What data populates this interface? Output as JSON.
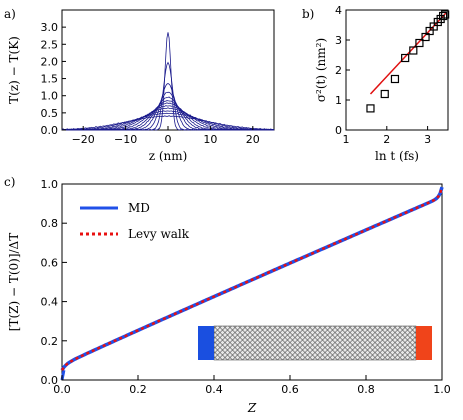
{
  "chart_data": [
    {
      "panel": "a)",
      "type": "line",
      "xlabel": "z (nm)",
      "ylabel": "T(z) − T(K)",
      "xlim": [
        -25,
        25
      ],
      "ylim": [
        0,
        3.5
      ],
      "xticks": [
        "−20",
        "−10",
        "0",
        "10",
        "20"
      ],
      "yticks": [
        "0.0",
        "0.5",
        "1.0",
        "1.5",
        "2.0",
        "2.5",
        "3.0"
      ],
      "series": [
        {
          "peak": 2.85,
          "width": 0.7
        },
        {
          "peak": 1.95,
          "width": 1.1
        },
        {
          "peak": 1.35,
          "width": 1.7
        },
        {
          "peak": 1.1,
          "width": 2.3
        },
        {
          "peak": 0.95,
          "width": 2.9
        },
        {
          "peak": 0.85,
          "width": 3.5
        },
        {
          "peak": 0.78,
          "width": 4.2
        },
        {
          "peak": 0.7,
          "width": 5.0
        },
        {
          "peak": 0.63,
          "width": 5.8
        },
        {
          "peak": 0.55,
          "width": 6.8
        },
        {
          "peak": 0.48,
          "width": 8.0
        },
        {
          "peak": 0.4,
          "width": 9.5
        }
      ],
      "line_color": "#1a1a8c"
    },
    {
      "panel": "b)",
      "type": "scatter",
      "xlabel": "ln t (fs)",
      "ylabel": "σ²(t) (nm²)",
      "xlim": [
        1,
        3.5
      ],
      "ylim": [
        0,
        4
      ],
      "xticks": [
        "1",
        "2",
        "3"
      ],
      "yticks": [
        "0",
        "1",
        "2",
        "3",
        "4"
      ],
      "points": {
        "x": [
          1.6,
          1.95,
          2.2,
          2.45,
          2.65,
          2.8,
          2.95,
          3.05,
          3.15,
          3.25,
          3.32,
          3.38,
          3.43
        ],
        "y": [
          0.72,
          1.2,
          1.7,
          2.4,
          2.65,
          2.9,
          3.1,
          3.3,
          3.45,
          3.6,
          3.7,
          3.8,
          3.85
        ]
      },
      "fit": {
        "x": [
          1.6,
          3.45
        ],
        "y": [
          1.2,
          3.9
        ]
      },
      "fit_color": "#e01010"
    },
    {
      "panel": "c)",
      "type": "line",
      "xlabel": "Z",
      "ylabel": "[T(Z) − T(0)]/ΔT",
      "xlim": [
        0,
        1
      ],
      "ylim": [
        0,
        1
      ],
      "xticks": [
        "0.0",
        "0.2",
        "0.4",
        "0.6",
        "0.8",
        "1.0"
      ],
      "yticks": [
        "0.0",
        "0.2",
        "0.4",
        "0.6",
        "0.8",
        "1.0"
      ],
      "series": [
        {
          "name": "MD",
          "color": "#2050e8",
          "style": "solid"
        },
        {
          "name": "Levy walk",
          "color": "#e81010",
          "style": "dotted"
        }
      ]
    }
  ]
}
